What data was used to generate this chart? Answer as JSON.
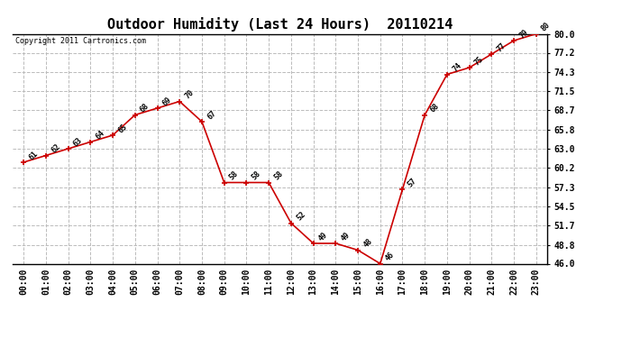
{
  "title": "Outdoor Humidity (Last 24 Hours)  20110214",
  "copyright": "Copyright 2011 Cartronics.com",
  "x_labels": [
    "00:00",
    "01:00",
    "02:00",
    "03:00",
    "04:00",
    "05:00",
    "06:00",
    "07:00",
    "08:00",
    "09:00",
    "10:00",
    "11:00",
    "12:00",
    "13:00",
    "14:00",
    "15:00",
    "16:00",
    "17:00",
    "18:00",
    "19:00",
    "20:00",
    "21:00",
    "22:00",
    "23:00"
  ],
  "x_values": [
    0,
    1,
    2,
    3,
    4,
    5,
    6,
    7,
    8,
    9,
    10,
    11,
    12,
    13,
    14,
    15,
    16,
    17,
    18,
    19,
    20,
    21,
    22,
    23
  ],
  "y_values": [
    61,
    62,
    63,
    64,
    65,
    68,
    69,
    70,
    67,
    58,
    58,
    58,
    52,
    49,
    49,
    48,
    46,
    57,
    68,
    74,
    75,
    77,
    79,
    80
  ],
  "point_labels": [
    "61",
    "62",
    "63",
    "64",
    "65",
    "68",
    "69",
    "70",
    "67",
    "58",
    "58",
    "58",
    "52",
    "49",
    "49",
    "48",
    "46",
    "57",
    "68",
    "74",
    "75",
    "77",
    "79",
    "80"
  ],
  "line_color": "#cc0000",
  "marker_color": "#cc0000",
  "bg_color": "#ffffff",
  "grid_color": "#bbbbbb",
  "y_min": 46.0,
  "y_max": 80.0,
  "y_ticks": [
    46.0,
    48.8,
    51.7,
    54.5,
    57.3,
    60.2,
    63.0,
    65.8,
    68.7,
    71.5,
    74.3,
    77.2,
    80.0
  ],
  "title_fontsize": 11,
  "label_fontsize": 6,
  "tick_fontsize": 7,
  "copyright_fontsize": 6
}
